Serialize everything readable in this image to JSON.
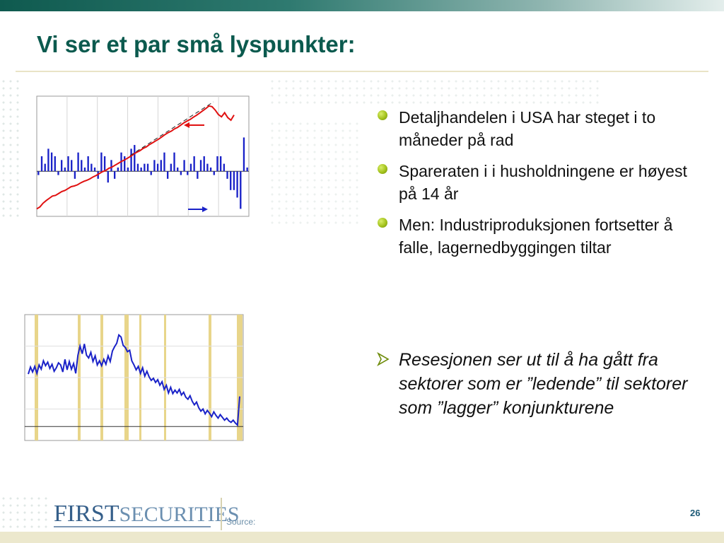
{
  "slide": {
    "title": "Vi ser et par små lyspunkter:",
    "page_number": "26",
    "source_label": "Source:"
  },
  "logo": {
    "first": "FIRST",
    "securities": "SECURITIES"
  },
  "bullets": [
    "Detaljhandelen i USA har steget i to måneder på rad",
    "Spareraten i i husholdningene er høyest på 14 år",
    "Men: Industriproduksjonen fortsetter å falle, lagernedbyggingen tiltar"
  ],
  "highlight": "Resesjonen ser ut til å ha gått fra sektorer som er ”ledende” til sektorer som ”lagger” konjunkturene",
  "colors": {
    "title": "#0b5a4e",
    "bullet": "#a3c21c",
    "bar_series": "#1a22c8",
    "line_series": "#e01010",
    "recession_band": "#e8d58a"
  },
  "chart_data": [
    {
      "type": "bar",
      "grid": true,
      "series": [
        {
          "type": "bar",
          "values": [
            -1,
            4,
            2,
            6,
            5,
            4,
            -1,
            3,
            1,
            4,
            3,
            -2,
            5,
            3,
            1,
            4,
            2,
            1,
            -2,
            5,
            4,
            -3,
            3,
            -2,
            1,
            5,
            4,
            1,
            6,
            7,
            2,
            1,
            2,
            2,
            -1,
            3,
            2,
            3,
            5,
            -2,
            2,
            5,
            1,
            -1,
            3,
            -1,
            2,
            4,
            -2,
            3,
            4,
            2,
            1,
            -1,
            4,
            4,
            2,
            -2,
            -5,
            -5,
            -7,
            -10,
            9,
            1
          ]
        },
        {
          "type": "line",
          "values": [
            -8,
            -7.5,
            -6.5,
            -5.8,
            -5.2,
            -4.6,
            -4.4,
            -3.9,
            -3.4,
            -3.1,
            -2.6,
            -2.1,
            -1.9,
            -1.6,
            -1.1,
            -0.7,
            -0.4,
            0,
            0.5,
            0.9,
            1.4,
            1.9,
            2.2,
            2.8,
            3.1,
            3.6,
            4.1,
            4.6,
            5,
            5.5,
            6,
            6.6,
            7.1,
            7.5,
            8.1,
            8.5,
            9.1,
            9.6,
            10.1,
            10.6,
            11.2,
            11.8,
            12.3,
            12.7,
            13.3,
            13.7,
            14.3,
            14.9,
            15.4,
            15.8,
            16.4,
            16.9,
            17.5,
            18.1,
            18.7,
            19.4,
            19.2,
            18.3,
            17.1,
            16.5,
            17.6,
            16.3,
            15.6,
            17
          ]
        }
      ]
    },
    {
      "type": "line",
      "grid": true,
      "series": [
        {
          "values": [
            7.5,
            8.5,
            7.8,
            8.6,
            7.6,
            8.8,
            8.2,
            9.4,
            8.7,
            9.2,
            8.3,
            8.9,
            7.9,
            8.4,
            9.1,
            8.8,
            7.8,
            9.6,
            8.1,
            9.3,
            8.2,
            9.0,
            7.6,
            10.2,
            11.5,
            10.4,
            11.8,
            10.2,
            9.8,
            10.6,
            9.3,
            10.1,
            8.8,
            9.4,
            8.7,
            9.6,
            8.9,
            10.1,
            9.3,
            10.8,
            11.4,
            11.9,
            13.1,
            12.8,
            11.6,
            11.3,
            10.7,
            10.9,
            9.4,
            8.8,
            8.1,
            8.6,
            7.6,
            8.4,
            7.2,
            7.9,
            7.1,
            6.6,
            6.9,
            6.3,
            6.7,
            5.9,
            6.4,
            5.3,
            5.9,
            4.8,
            5.6,
            4.7,
            5.2,
            4.8,
            5.3,
            4.5,
            4.9,
            4.2,
            3.9,
            4.4,
            3.6,
            3.1,
            3.5,
            2.7,
            2.2,
            2.5,
            1.8,
            2.3,
            1.9,
            1.4,
            2.1,
            1.6,
            1.2,
            1.7,
            1.3,
            0.9,
            1.2,
            0.8,
            0.6,
            0.9,
            0.5,
            0.2,
            4.3
          ]
        }
      ]
    }
  ]
}
